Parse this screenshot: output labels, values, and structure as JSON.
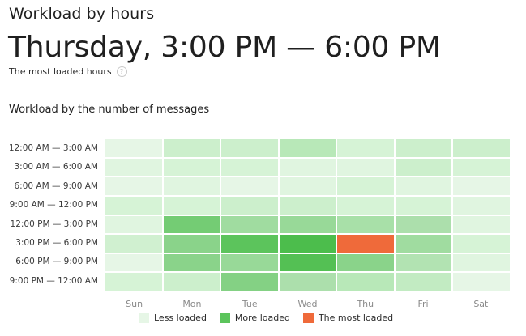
{
  "header": {
    "title": "Workload by hours",
    "range": "Thursday, 3:00 PM — 6:00 PM",
    "subtitle": "The most loaded hours",
    "help_glyph": "?"
  },
  "section": {
    "title": "Workload by the number of messages"
  },
  "heatmap": {
    "rows": [
      "12:00 AM — 3:00 AM",
      "3:00 AM — 6:00 AM",
      "6:00 AM — 9:00 AM",
      "9:00 AM — 12:00 PM",
      "12:00 PM — 3:00 PM",
      "3:00 PM — 6:00 PM",
      "6:00 PM — 9:00 PM",
      "9:00 PM — 12:00 AM"
    ],
    "columns": [
      "Sun",
      "Mon",
      "Tue",
      "Wed",
      "Thu",
      "Fri",
      "Sat"
    ],
    "cells": [
      [
        "#e6f6e6",
        "#ccefcc",
        "#ccefcc",
        "#b8e8b8",
        "#d6f3d6",
        "#ccefcc",
        "#ccefcc"
      ],
      [
        "#e0f5e0",
        "#d6f3d6",
        "#d6f3d6",
        "#e0f5e0",
        "#e0f5e0",
        "#ccefcc",
        "#d6f3d6"
      ],
      [
        "#e6f6e6",
        "#e0f5e0",
        "#e6f6e6",
        "#e0f5e0",
        "#d6f3d6",
        "#e0f5e0",
        "#e6f6e6"
      ],
      [
        "#d6f3d6",
        "#d6f3d6",
        "#ccefcc",
        "#ccefcc",
        "#d6f3d6",
        "#d6f3d6",
        "#e0f5e0"
      ],
      [
        "#e0f5e0",
        "#74cc74",
        "#a0dca0",
        "#98d998",
        "#a8e0a8",
        "#acdfac",
        "#e0f5e0"
      ],
      [
        "#d0f0d0",
        "#8ad38a",
        "#5cc45c",
        "#4cbd4c",
        "#ef6a3a",
        "#a0dca0",
        "#d6f3d6"
      ],
      [
        "#e6f6e6",
        "#8ad38a",
        "#98d998",
        "#54c054",
        "#8ad38a",
        "#b2e3b2",
        "#e0f5e0"
      ],
      [
        "#d6f3d6",
        "#ccefcc",
        "#84d184",
        "#acdfac",
        "#b8e8b8",
        "#c2ebc2",
        "#e6f6e6"
      ]
    ]
  },
  "legend": [
    {
      "label": "Less loaded",
      "color": "#e6f6e6"
    },
    {
      "label": "More loaded",
      "color": "#5cc45c"
    },
    {
      "label": "The most loaded",
      "color": "#ef6a3a"
    }
  ]
}
